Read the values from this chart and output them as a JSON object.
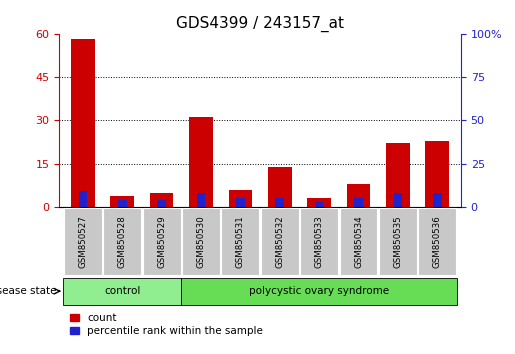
{
  "title": "GDS4399 / 243157_at",
  "categories": [
    "GSM850527",
    "GSM850528",
    "GSM850529",
    "GSM850530",
    "GSM850531",
    "GSM850532",
    "GSM850533",
    "GSM850534",
    "GSM850535",
    "GSM850536"
  ],
  "red_values": [
    58,
    4,
    5,
    31,
    6,
    14,
    3,
    8,
    22,
    23
  ],
  "blue_values": [
    9,
    4,
    4,
    8,
    5,
    5,
    3,
    5,
    8,
    8
  ],
  "left_ylim": [
    0,
    60
  ],
  "left_yticks": [
    0,
    15,
    30,
    45,
    60
  ],
  "right_ylim": [
    0,
    100
  ],
  "right_yticks": [
    0,
    25,
    50,
    75,
    100
  ],
  "right_yticklabels": [
    "0",
    "25",
    "50",
    "75",
    "100%"
  ],
  "red_color": "#cc0000",
  "blue_color": "#2222cc",
  "bar_width": 0.6,
  "blue_bar_width": 0.22,
  "groups": [
    {
      "label": "control",
      "indices": [
        0,
        1,
        2
      ],
      "color": "#90ee90"
    },
    {
      "label": "polycystic ovary syndrome",
      "indices": [
        3,
        4,
        5,
        6,
        7,
        8,
        9
      ],
      "color": "#66dd55"
    }
  ],
  "group_label_prefix": "disease state",
  "legend_items": [
    {
      "label": "count",
      "color": "#cc0000"
    },
    {
      "label": "percentile rank within the sample",
      "color": "#2222cc"
    }
  ],
  "tick_label_bg": "#c8c8c8",
  "grid_color": "#000000",
  "grid_yticks": [
    15,
    30,
    45
  ],
  "left_tick_color": "#cc0000",
  "right_tick_color": "#2222cc",
  "title_fontsize": 11,
  "tick_fontsize": 8
}
